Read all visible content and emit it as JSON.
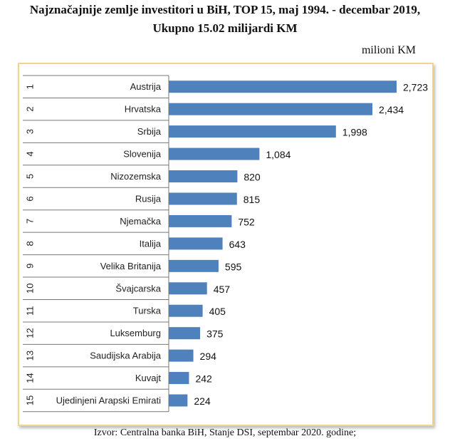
{
  "chart_data": {
    "type": "bar",
    "orientation": "horizontal",
    "title": "Najznačajnije zemlje investitori u BiH, TOP 15, maj 1994. - decembar 2019,",
    "subtitle": "Ukupno 15.02 milijardi KM",
    "unit": "milioni KM",
    "ranks": [
      "1",
      "2",
      "3",
      "4",
      "5",
      "6",
      "7",
      "8",
      "9",
      "10",
      "11",
      "12",
      "13",
      "14",
      "15"
    ],
    "categories": [
      "Austrija",
      "Hrvatska",
      "Srbija",
      "Slovenija",
      "Nizozemska",
      "Rusija",
      "Njemačka",
      "Italija",
      "Velika Britanija",
      "Švajcarska",
      "Turska",
      "Luksemburg",
      "Saudijska Arabija",
      "Kuvajt",
      "Ujedinjeni Arapski Emirati"
    ],
    "values": [
      2723,
      2434,
      1998,
      1084,
      820,
      815,
      752,
      643,
      595,
      457,
      405,
      375,
      294,
      242,
      224
    ],
    "value_labels": [
      "2,723",
      "2,434",
      "1,998",
      "1,084",
      "820",
      "815",
      "752",
      "643",
      "595",
      "457",
      "405",
      "375",
      "294",
      "242",
      "224"
    ],
    "bar_color": "#4f81bd",
    "frame_color": "#f0d58a",
    "grid": false,
    "source": "Izvor: Centralna banka BiH, Stanje DSI, septembar 2020. godine;"
  }
}
